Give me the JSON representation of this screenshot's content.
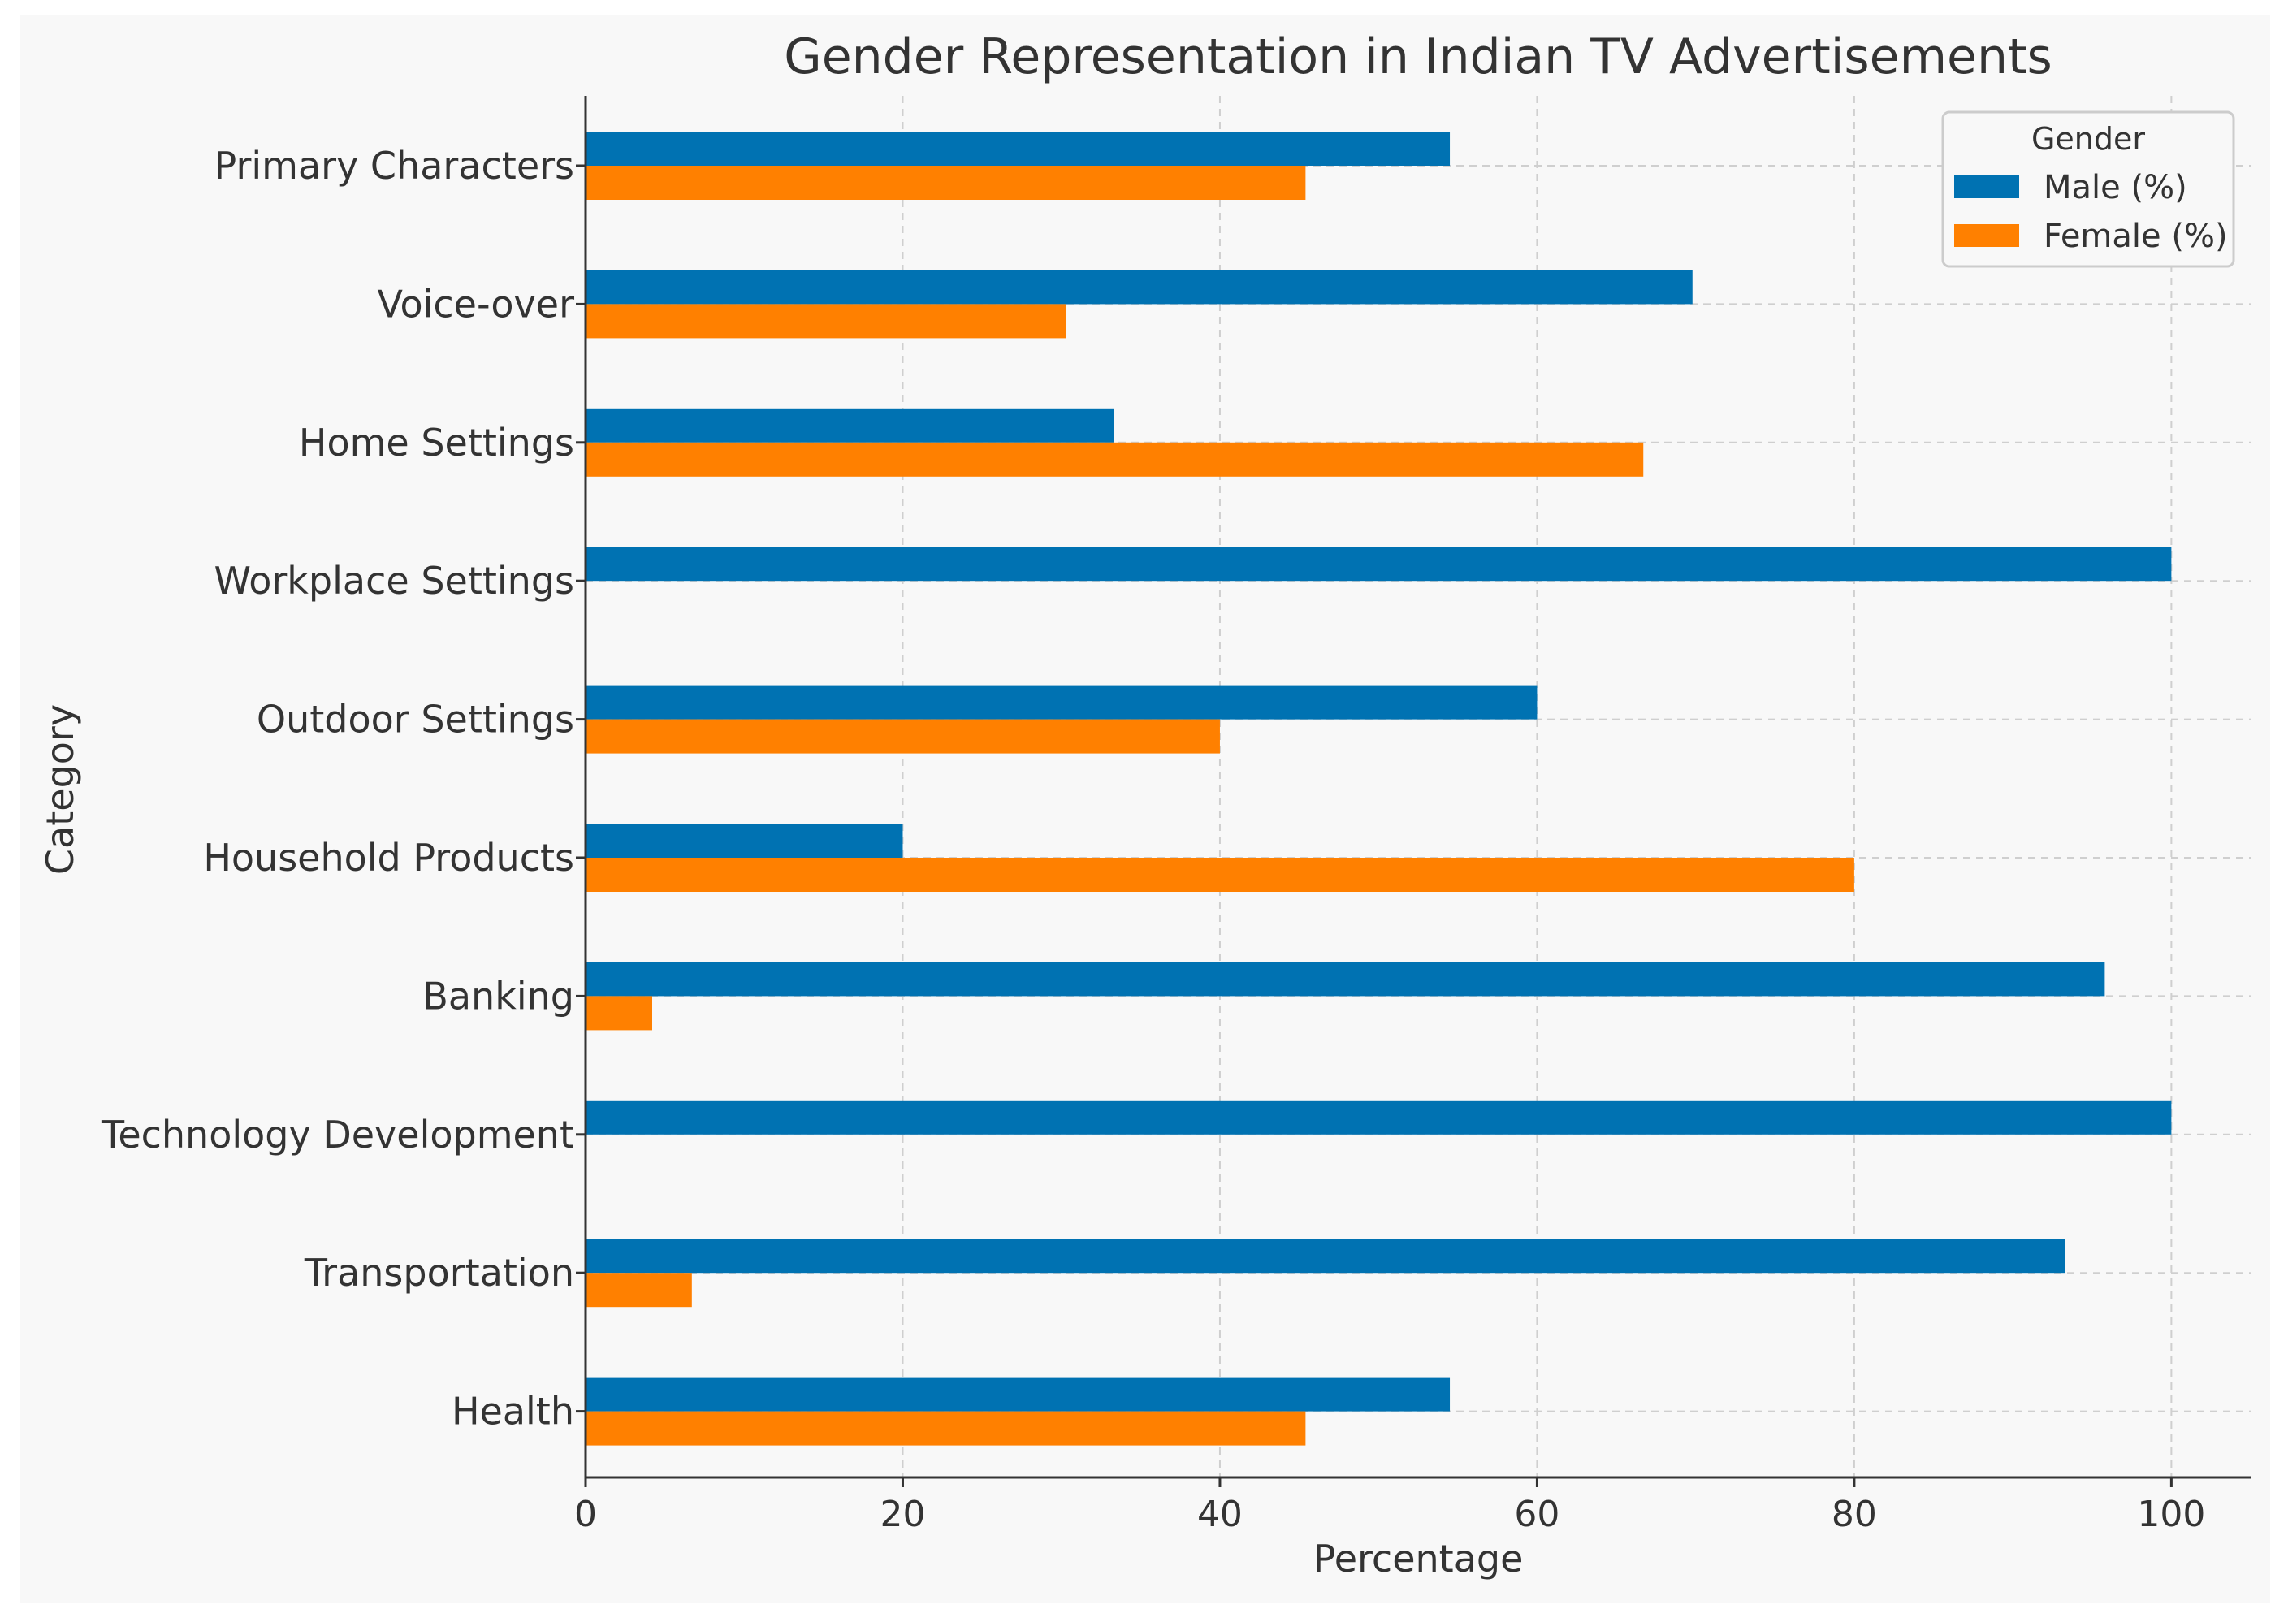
{
  "chart_data": {
    "type": "bar",
    "orientation": "horizontal",
    "title": "Gender Representation in Indian TV Advertisements",
    "xlabel": "Percentage",
    "ylabel": "Category",
    "xlim": [
      0,
      105
    ],
    "xticks": [
      0,
      20,
      40,
      60,
      80,
      100
    ],
    "grid": true,
    "legend": {
      "title": "Gender",
      "placement": "top-right"
    },
    "categories": [
      "Primary Characters",
      "Voice-over",
      "Home Settings",
      "Workplace Settings",
      "Outdoor Settings",
      "Household Products",
      "Banking",
      "Technology Development",
      "Transportation",
      "Health"
    ],
    "series": [
      {
        "name": "Male (%)",
        "color": "#0072b2",
        "values": [
          54.5,
          69.8,
          33.3,
          100,
          60,
          20,
          95.8,
          100,
          93.3,
          54.5
        ]
      },
      {
        "name": "Female (%)",
        "color": "#ff8000",
        "values": [
          45.4,
          30.3,
          66.7,
          0,
          40,
          80,
          4.2,
          0,
          6.7,
          45.4
        ]
      }
    ]
  }
}
